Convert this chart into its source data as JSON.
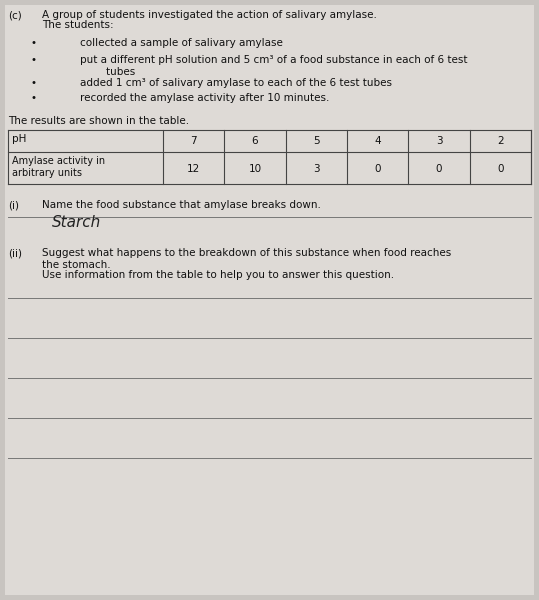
{
  "bg_color": "#c8c4c0",
  "page_color": "#dedad6",
  "title_label": "(c)",
  "title_line1": "A group of students investigated the action of salivary amylase.",
  "title_line2": "The students:",
  "bullets": [
    "collected a sample of salivary amylase",
    "put a different pH solution and 5 cm³ of a food substance in each of 6 test\n        tubes",
    "added 1 cm³ of salivary amylase to each of the 6 test tubes",
    "recorded the amylase activity after 10 minutes."
  ],
  "table_intro": "The results are shown in the table.",
  "table_col0": "pH",
  "table_row1": [
    "7",
    "6",
    "5",
    "4",
    "3",
    "2"
  ],
  "table_col0_row2": "Amylase activity in\narbitrary units",
  "table_row2": [
    "12",
    "10",
    "3",
    "0",
    "0",
    "0"
  ],
  "q1_label": "(i)",
  "q1_text": "Name the food substance that amylase breaks down.",
  "answer_starch": "Starch",
  "q2_label": "(ii)",
  "q2_text": "Suggest what happens to the breakdown of this substance when food reaches\nthe stomach.",
  "q2_subtext": "Use information from the table to help you to answer this question.",
  "fs": 7.5,
  "fs_small": 7.0,
  "tc": "#111111",
  "line_color": "#777777",
  "table_line_color": "#444444"
}
